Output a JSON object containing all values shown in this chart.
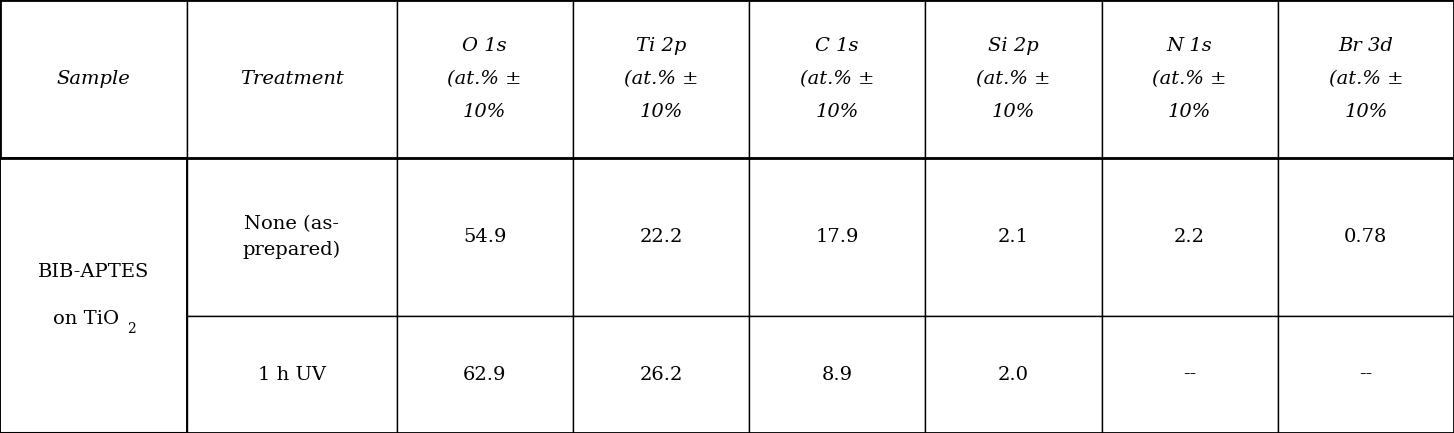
{
  "col_headers_l1": [
    "Sample",
    "Treatment",
    "O 1s",
    "Ti 2p",
    "C 1s",
    "Si 2p",
    "N 1s",
    "Br 3d"
  ],
  "col_headers_l2": [
    "",
    "",
    "(at.% ±",
    "(at.% ±",
    "(at.% ±",
    "(at.% ±",
    "(at.% ±",
    "(at.% ±"
  ],
  "col_headers_l3": [
    "",
    "",
    "10%",
    "10%",
    "10%",
    "10%",
    "10%",
    "10%"
  ],
  "sample_l1": "BIB-APTES",
  "sample_l2": "on TiO",
  "sample_sub": "2",
  "rows": [
    [
      "None (as-\nprepared)",
      "54.9",
      "22.2",
      "17.9",
      "2.1",
      "2.2",
      "0.78"
    ],
    [
      "1 h UV",
      "62.9",
      "26.2",
      "8.9",
      "2.0",
      "--",
      "--"
    ]
  ],
  "background_color": "#ffffff",
  "text_color": "#000000",
  "font_size": 14,
  "font_size_small": 11
}
